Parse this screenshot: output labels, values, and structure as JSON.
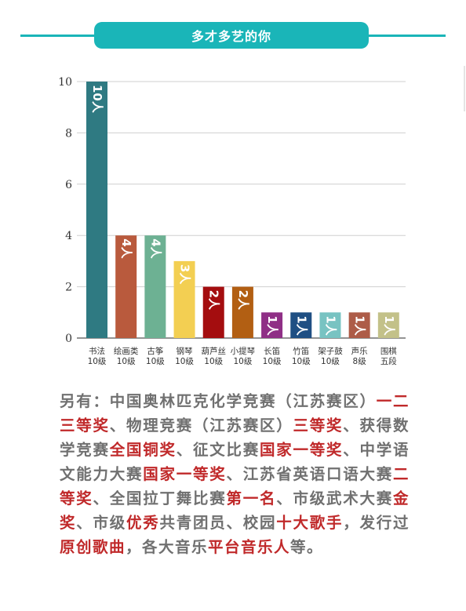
{
  "header": {
    "title": "多才多艺的你"
  },
  "chart_data": {
    "type": "bar",
    "categories": [
      "书法\n10级",
      "绘画类\n10级",
      "古筝\n10级",
      "钢琴\n10级",
      "葫芦丝\n10级",
      "小提琴\n10级",
      "长笛\n10级",
      "竹笛\n10级",
      "架子鼓\n10级",
      "声乐\n8级",
      "围棋\n五段"
    ],
    "values": [
      10,
      4,
      4,
      3,
      2,
      2,
      1,
      1,
      1,
      1,
      1
    ],
    "data_labels": [
      "10人",
      "4人",
      "4人",
      "3人",
      "2人",
      "2人",
      "1人",
      "1人",
      "1人",
      "1人",
      "1人"
    ],
    "colors": [
      "#2f7a82",
      "#b95a3d",
      "#6db193",
      "#f3cf52",
      "#a40d0f",
      "#b25f13",
      "#8f2f86",
      "#1f4f83",
      "#78c3c2",
      "#ad5c48",
      "#c3c189"
    ],
    "y_ticks": [
      "0",
      "2",
      "4",
      "6",
      "8",
      "10"
    ],
    "ylim": [
      0,
      10
    ],
    "grid": true,
    "legend": false
  },
  "note": {
    "segments": [
      {
        "text": "另有：中国奥林匹克化学竞赛（江苏赛区）",
        "hl": false
      },
      {
        "text": "一二三等奖",
        "hl": true
      },
      {
        "text": "、物理竞赛（江苏赛区）",
        "hl": false
      },
      {
        "text": "三等奖",
        "hl": true
      },
      {
        "text": "、获得数学竞赛",
        "hl": false
      },
      {
        "text": "全国铜奖",
        "hl": true
      },
      {
        "text": "、征文比赛",
        "hl": false
      },
      {
        "text": "国家一等奖",
        "hl": true
      },
      {
        "text": "、中学语文能力大赛",
        "hl": false
      },
      {
        "text": "国家一等奖",
        "hl": true
      },
      {
        "text": "、江苏省英语口语大赛",
        "hl": false
      },
      {
        "text": "二等奖",
        "hl": true
      },
      {
        "text": "、全国拉丁舞比赛",
        "hl": false
      },
      {
        "text": "第一名",
        "hl": true
      },
      {
        "text": "、市级武术大赛",
        "hl": false
      },
      {
        "text": "金奖",
        "hl": true
      },
      {
        "text": "、市级",
        "hl": false
      },
      {
        "text": "优秀",
        "hl": true
      },
      {
        "text": "共青团员、校园",
        "hl": false
      },
      {
        "text": "十大歌手",
        "hl": true
      },
      {
        "text": "，发行过",
        "hl": false
      },
      {
        "text": "原创歌曲",
        "hl": true
      },
      {
        "text": "，各大音乐",
        "hl": false
      },
      {
        "text": "平台音乐人",
        "hl": true
      },
      {
        "text": "等。",
        "hl": false
      }
    ]
  }
}
